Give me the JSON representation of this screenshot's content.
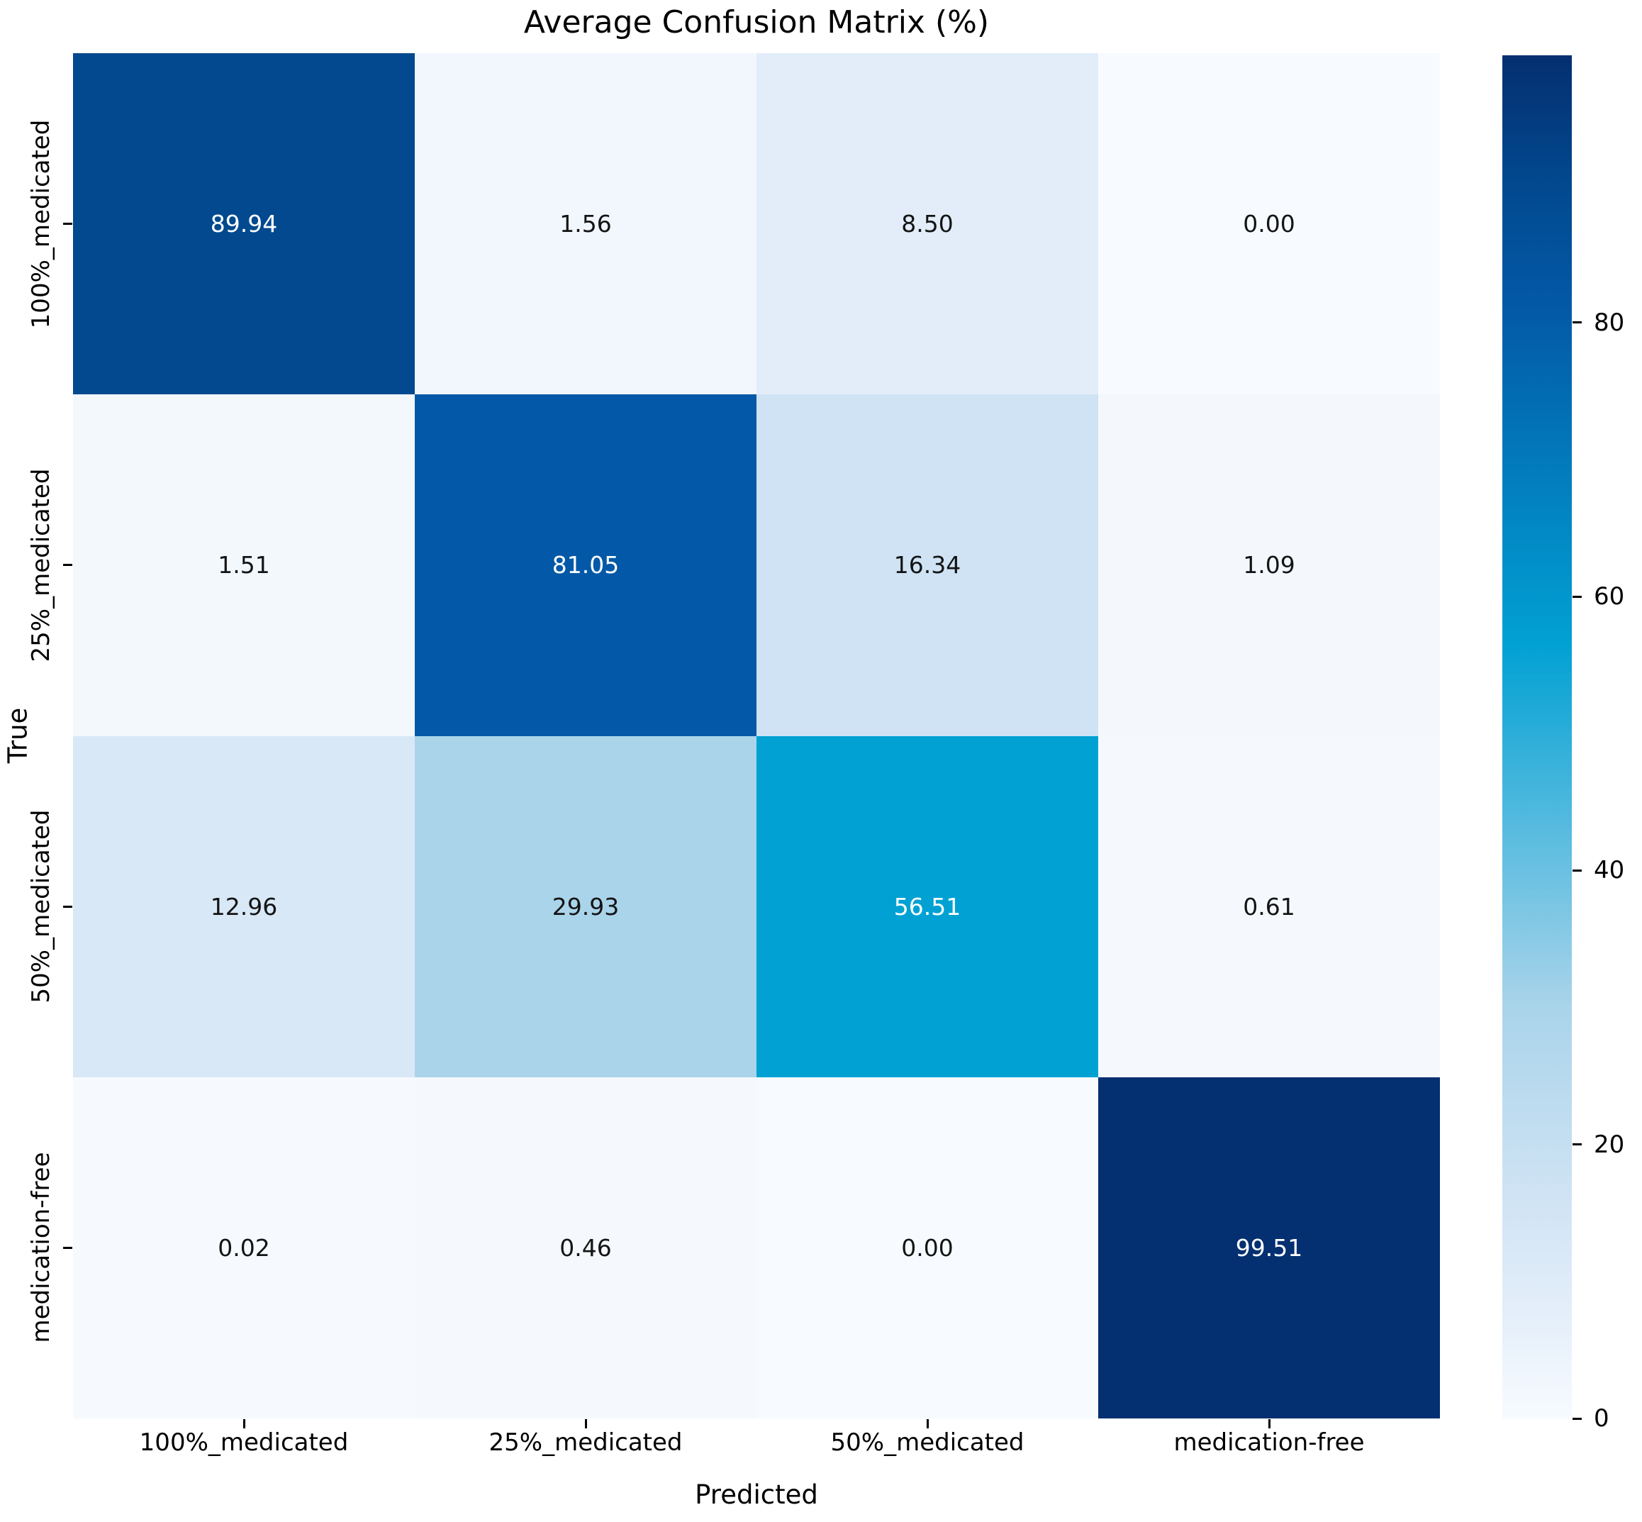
{
  "title": "Average Confusion Matrix (%)",
  "chart_data": {
    "type": "heatmap",
    "title": "Average Confusion Matrix (%)",
    "xlabel": "Predicted",
    "ylabel": "True",
    "x_categories": [
      "100%_medicated",
      "25%_medicated",
      "50%_medicated",
      "medication-free"
    ],
    "y_categories": [
      "100%_medicated",
      "25%_medicated",
      "50%_medicated",
      "medication-free"
    ],
    "values": [
      [
        89.94,
        1.56,
        8.5,
        0.0
      ],
      [
        1.51,
        81.05,
        16.34,
        1.09
      ],
      [
        12.96,
        29.93,
        56.51,
        0.61
      ],
      [
        0.02,
        0.46,
        0.0,
        99.51
      ]
    ],
    "cell_colors": [
      [
        "#02498f",
        "#f1f7fd",
        "#e2edf9",
        "#f7fbff"
      ],
      [
        "#f3f8fd",
        "#0359a7",
        "#cfe3f4",
        "#f4f8fd"
      ],
      [
        "#d8e8f7",
        "#aad4ea",
        "#01a1d3",
        "#f5f9fe"
      ],
      [
        "#f6fafe",
        "#f5f9fe",
        "#f7fbff",
        "#042f70"
      ]
    ],
    "annot_text_color_on_dark": "#ffffff",
    "annot_text_color_on_light": "#141414",
    "colormap_name": "Blues",
    "vmin": 0,
    "vmax": 99.51,
    "grid": false,
    "colorbar": {
      "position": "right",
      "ticks": [
        0,
        20,
        40,
        60,
        80
      ],
      "gradient_stops": [
        {
          "pct": 0,
          "color": "#f7fbff"
        },
        {
          "pct": 8.5,
          "color": "#e2edf9"
        },
        {
          "pct": 16.4,
          "color": "#cfe3f4"
        },
        {
          "pct": 30.1,
          "color": "#aad4ea"
        },
        {
          "pct": 56.8,
          "color": "#01a1d3"
        },
        {
          "pct": 81.4,
          "color": "#0359a7"
        },
        {
          "pct": 90.4,
          "color": "#02498f"
        },
        {
          "pct": 100,
          "color": "#042f70"
        }
      ]
    }
  }
}
